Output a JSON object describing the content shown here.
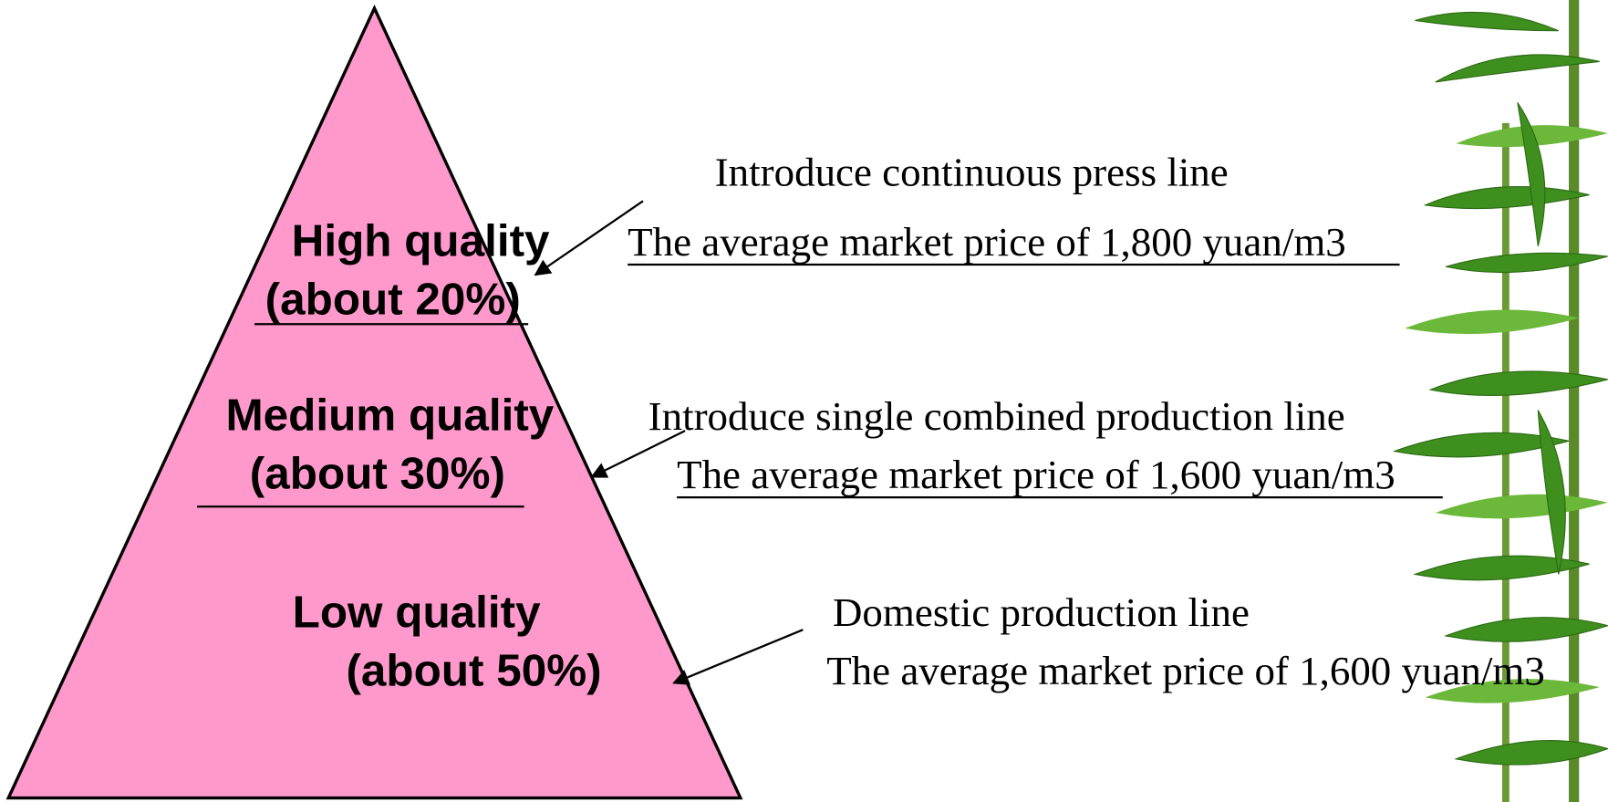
{
  "levels": [
    {
      "label": "High quality",
      "share": "(about 20%)",
      "line": "Introduce continuous press line",
      "price": "The average market price of 1,800 yuan/m3"
    },
    {
      "label": "Medium quality",
      "share": "(about 30%)",
      "line": "Introduce single combined production line",
      "price": "The average market price of 1,600 yuan/m3"
    },
    {
      "label": "Low quality",
      "share": "(about 50%)",
      "line": "Domestic production line",
      "price": "The average market price of 1,600 yuan/m3"
    }
  ]
}
